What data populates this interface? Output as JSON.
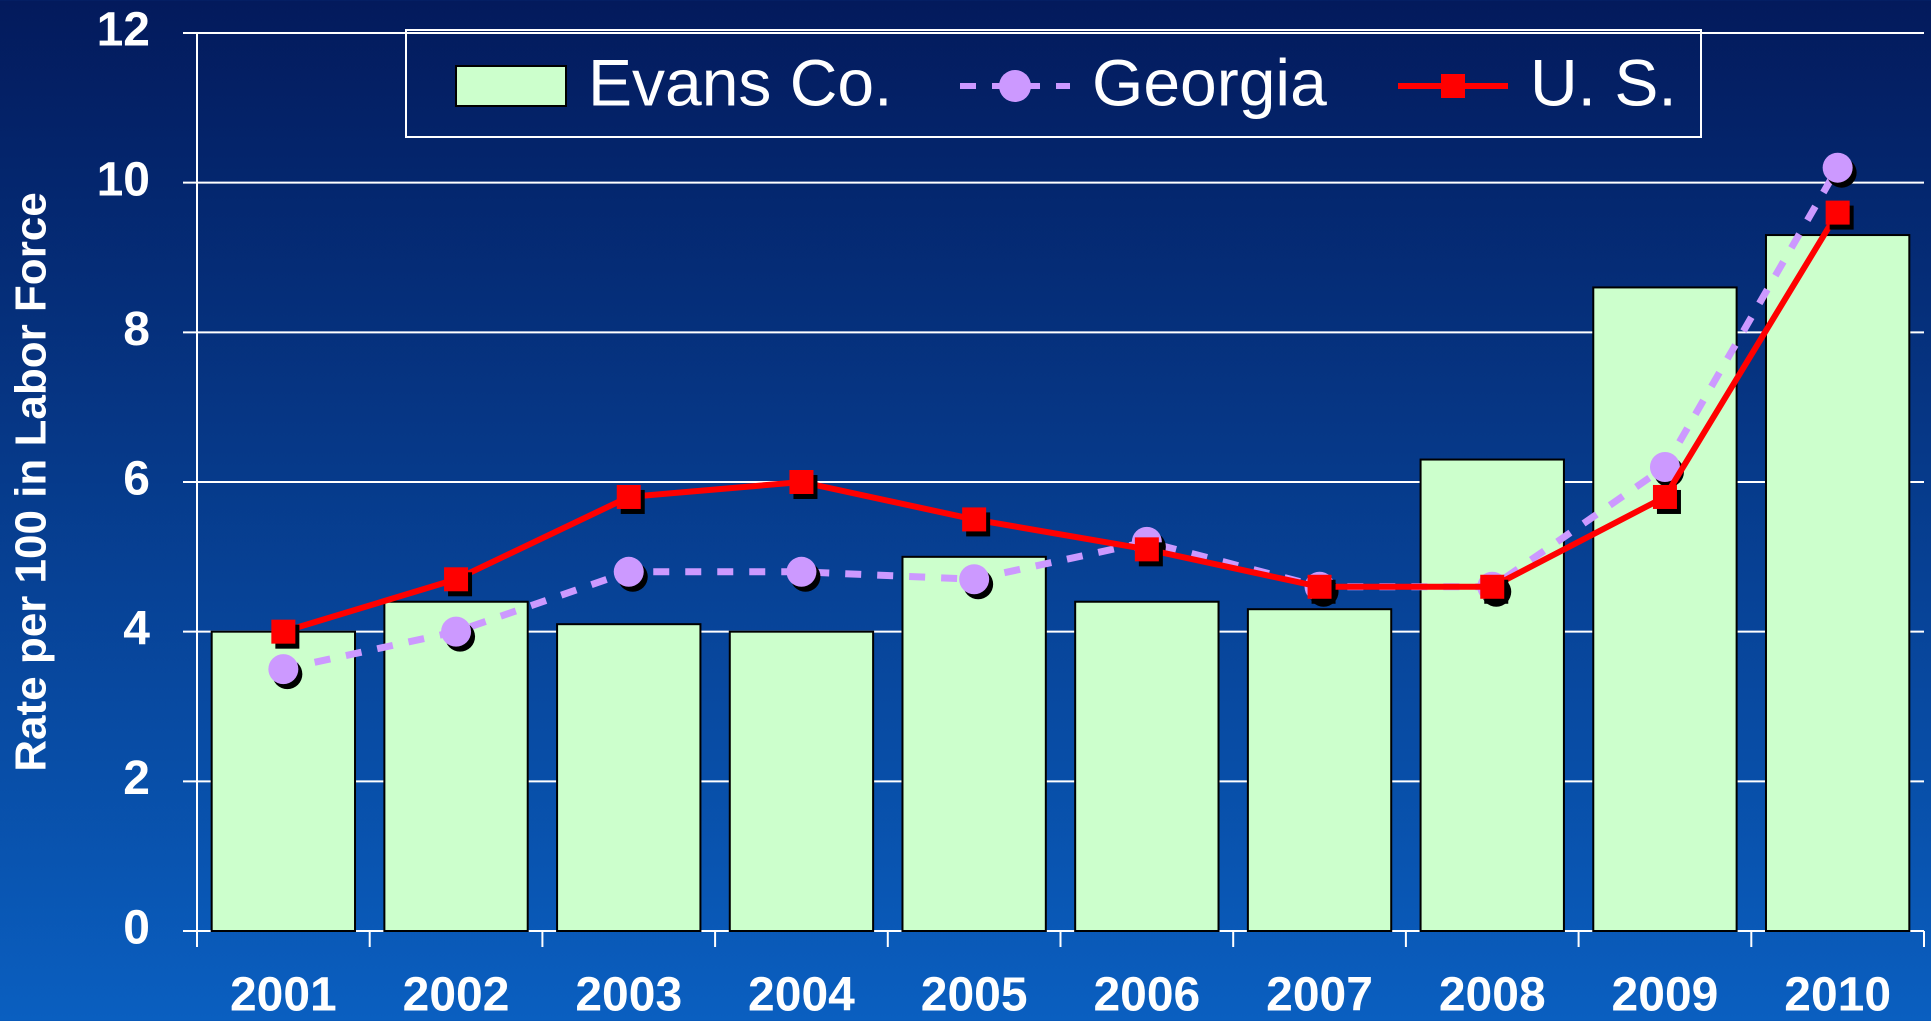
{
  "chart_data": {
    "type": "bar",
    "y_label": "Rate per 100 in Labor Force",
    "categories": [
      "2001",
      "2002",
      "2003",
      "2004",
      "2005",
      "2006",
      "2007",
      "2008",
      "2009",
      "2010"
    ],
    "series": [
      {
        "name": "Evans Co.",
        "type": "bar",
        "color": "#ccffcc",
        "values": [
          4.0,
          4.4,
          4.1,
          4.0,
          5.0,
          4.4,
          4.3,
          6.3,
          8.6,
          9.3
        ]
      },
      {
        "name": "Georgia",
        "type": "line",
        "color": "#cc99ff",
        "dashed": true,
        "marker": "circle",
        "values": [
          3.5,
          4.0,
          4.8,
          4.8,
          4.7,
          5.2,
          4.6,
          4.6,
          6.2,
          10.2
        ]
      },
      {
        "name": "U. S.",
        "type": "line",
        "color": "#ff0000",
        "marker": "square",
        "values": [
          4.0,
          4.7,
          5.8,
          6.0,
          5.5,
          5.1,
          4.6,
          4.6,
          5.8,
          9.6
        ]
      }
    ],
    "ylim": [
      0,
      12
    ],
    "yticks": [
      0,
      2,
      4,
      6,
      8,
      10,
      12
    ],
    "grid": true,
    "legend": "top"
  }
}
